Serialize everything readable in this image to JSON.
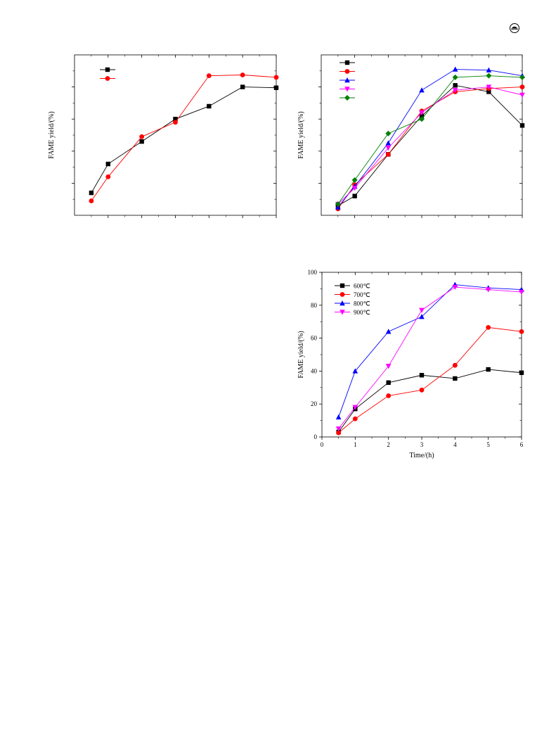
{
  "header": {
    "icon": "journal-logo-icon"
  },
  "chart_data": [
    {
      "type": "line",
      "title": "",
      "xlabel": "",
      "ylabel": "FAME yield/(%)",
      "show_tick_labels": false,
      "xlim": [
        0,
        6
      ],
      "ylim": [
        0,
        100
      ],
      "x_ticks": [
        1,
        2,
        3,
        4,
        5,
        6
      ],
      "y_ticks": [
        20,
        40,
        60,
        80
      ],
      "legend_position": "top-left",
      "series": [
        {
          "name": "",
          "color": "#000000",
          "marker": "square",
          "x": [
            0.5,
            1,
            2,
            3,
            4,
            5,
            6
          ],
          "y": [
            14,
            32,
            46,
            60,
            68,
            80,
            79.5
          ]
        },
        {
          "name": "",
          "color": "#ff0000",
          "marker": "circle",
          "x": [
            0.5,
            1,
            2,
            3,
            4,
            5,
            6
          ],
          "y": [
            9,
            24,
            49,
            58,
            87,
            87.5,
            86
          ]
        }
      ]
    },
    {
      "type": "line",
      "title": "",
      "xlabel": "",
      "ylabel": "FAME yield/(%)",
      "show_tick_labels": false,
      "xlim": [
        0,
        6
      ],
      "ylim": [
        0,
        100
      ],
      "x_ticks": [
        1,
        2,
        3,
        4,
        5,
        6
      ],
      "y_ticks": [
        20,
        40,
        60,
        80
      ],
      "legend_position": "top-left",
      "series": [
        {
          "name": "",
          "color": "#000000",
          "marker": "square",
          "x": [
            0.5,
            1,
            2,
            3,
            4,
            5,
            6
          ],
          "y": [
            6,
            12,
            38,
            62,
            81,
            77,
            56
          ]
        },
        {
          "name": "",
          "color": "#ff0000",
          "marker": "circle",
          "x": [
            0.5,
            1,
            2,
            3,
            4,
            5,
            6
          ],
          "y": [
            4,
            19,
            38,
            65,
            77,
            79,
            80
          ]
        },
        {
          "name": "",
          "color": "#0000ff",
          "marker": "triangle-up",
          "x": [
            0.5,
            1,
            2,
            3,
            4,
            5,
            6
          ],
          "y": [
            5,
            18,
            45,
            78,
            91,
            90.5,
            87
          ]
        },
        {
          "name": "",
          "color": "#ff00ff",
          "marker": "triangle-down",
          "x": [
            0.5,
            1,
            2,
            3,
            4,
            5,
            6
          ],
          "y": [
            7,
            17,
            42,
            64,
            78,
            80,
            75
          ]
        },
        {
          "name": "",
          "color": "#008000",
          "marker": "diamond",
          "x": [
            0.5,
            1,
            2,
            3,
            4,
            5,
            6
          ],
          "y": [
            7,
            22,
            51,
            60,
            86,
            87,
            86
          ]
        }
      ]
    },
    {
      "type": "line",
      "title": "",
      "xlabel": "Time/(h)",
      "ylabel": "FAME yield/(%)",
      "show_tick_labels": true,
      "xlim": [
        0,
        6
      ],
      "ylim": [
        0,
        100
      ],
      "x_ticks": [
        0,
        1,
        2,
        3,
        4,
        5,
        6
      ],
      "y_ticks": [
        0,
        20,
        40,
        60,
        80,
        100
      ],
      "legend_position": "top-left",
      "series": [
        {
          "name": "600℃",
          "color": "#000000",
          "marker": "square",
          "x": [
            0.5,
            1,
            2,
            3,
            4,
            5,
            6
          ],
          "y": [
            3,
            17,
            33,
            37.5,
            35.5,
            41,
            39
          ]
        },
        {
          "name": "700℃",
          "color": "#ff0000",
          "marker": "circle",
          "x": [
            0.5,
            1,
            2,
            3,
            4,
            5,
            6
          ],
          "y": [
            2.5,
            11,
            25,
            28.5,
            43.5,
            66.5,
            64
          ]
        },
        {
          "name": "800℃",
          "color": "#0000ff",
          "marker": "triangle-up",
          "x": [
            0.5,
            1,
            2,
            3,
            4,
            5,
            6
          ],
          "y": [
            12,
            40,
            64,
            73,
            92.5,
            90.5,
            89.5
          ]
        },
        {
          "name": "900℃",
          "color": "#ff00ff",
          "marker": "triangle-down",
          "x": [
            0.5,
            1,
            2,
            3,
            4,
            5,
            6
          ],
          "y": [
            5,
            18,
            43,
            77,
            91,
            89.5,
            88
          ]
        }
      ]
    }
  ]
}
